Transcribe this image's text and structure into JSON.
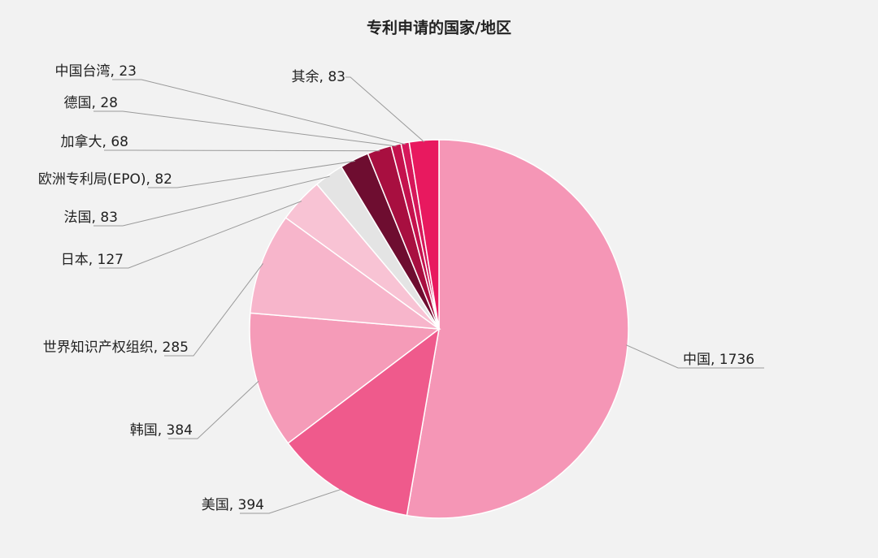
{
  "chart_data": {
    "type": "pie",
    "title": "专利申请的国家/地区",
    "values": [
      1736,
      394,
      384,
      285,
      127,
      83,
      82,
      68,
      28,
      23,
      83
    ],
    "value_labels": [
      "中国, 1736",
      "美国, 394",
      "韩国, 384",
      "世界知识产权组织, 285",
      "日本, 127",
      "法国, 83",
      "欧洲专利局(EPO), 82",
      "加拿大, 68",
      "德国, 28",
      "中国台湾, 23",
      "其余, 83"
    ],
    "colors": [
      "#f596b6",
      "#ef5a8c",
      "#f59bb8",
      "#f7b5cb",
      "#f8c3d4",
      "#e4e4e4",
      "#6e0d30",
      "#a80f40",
      "#c4124d",
      "#d6175a",
      "#e8195f"
    ]
  }
}
